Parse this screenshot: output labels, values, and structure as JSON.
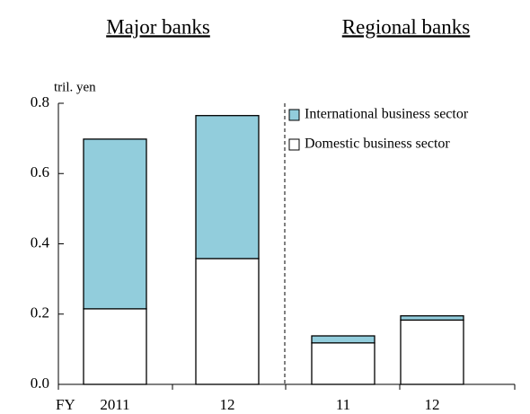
{
  "chart_data": {
    "type": "stacked_bar",
    "group_labels": [
      "Major banks",
      "Regional banks"
    ],
    "y_unit": "tril. yen",
    "x_label": "FY",
    "categories": [
      "2011",
      "12",
      "11",
      "12"
    ],
    "series": [
      {
        "name": "Domestic business sector",
        "color": "#ffffff",
        "values": [
          0.215,
          0.358,
          0.118,
          0.183
        ]
      },
      {
        "name": "International business sector",
        "color": "#92cddc",
        "values": [
          0.483,
          0.407,
          0.02,
          0.012
        ]
      }
    ],
    "ylim": [
      0,
      0.8
    ],
    "yticks": [
      {
        "value": 0,
        "label": "0.0"
      },
      0.2,
      0.4,
      0.6,
      0.8
    ]
  }
}
